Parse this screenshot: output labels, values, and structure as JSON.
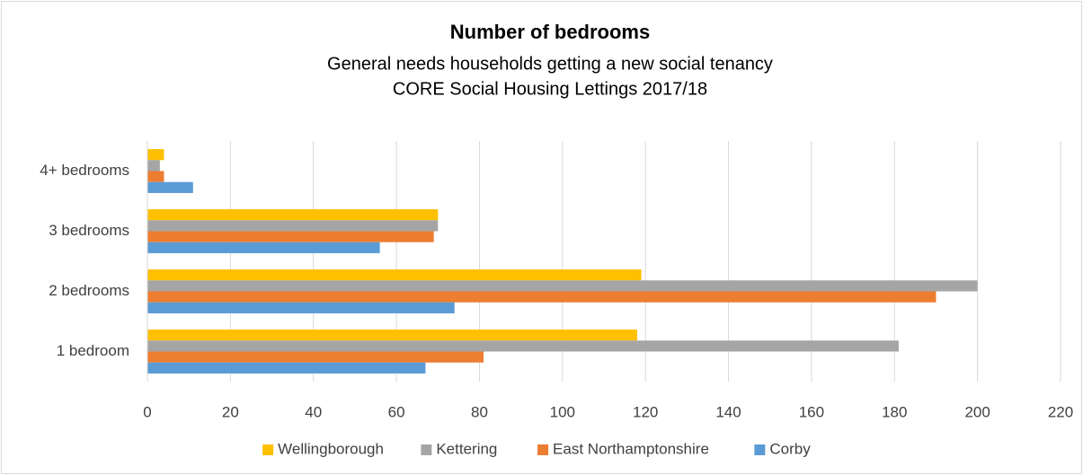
{
  "chart_data": {
    "type": "barh",
    "title": "Number of bedrooms",
    "subtitle": [
      "General needs households getting a new social tenancy",
      "CORE Social Housing Lettings 2017/18"
    ],
    "categories": [
      "1 bedroom",
      "2 bedrooms",
      "3 bedrooms",
      "4+ bedrooms"
    ],
    "series": [
      {
        "name": "Wellingborough",
        "color": "#ffc000",
        "values": [
          118,
          119,
          70,
          4
        ]
      },
      {
        "name": "Kettering",
        "color": "#a5a5a5",
        "values": [
          181,
          200,
          70,
          3
        ]
      },
      {
        "name": "East Northamptonshire",
        "color": "#ed7d31",
        "values": [
          81,
          190,
          69,
          4
        ]
      },
      {
        "name": "Corby",
        "color": "#5b9bd5",
        "values": [
          67,
          74,
          56,
          11
        ]
      }
    ],
    "xlim": [
      0,
      220
    ],
    "xticks": [
      0,
      20,
      40,
      60,
      80,
      100,
      120,
      140,
      160,
      180,
      200,
      220
    ],
    "grid": true,
    "legend": "bottom"
  }
}
